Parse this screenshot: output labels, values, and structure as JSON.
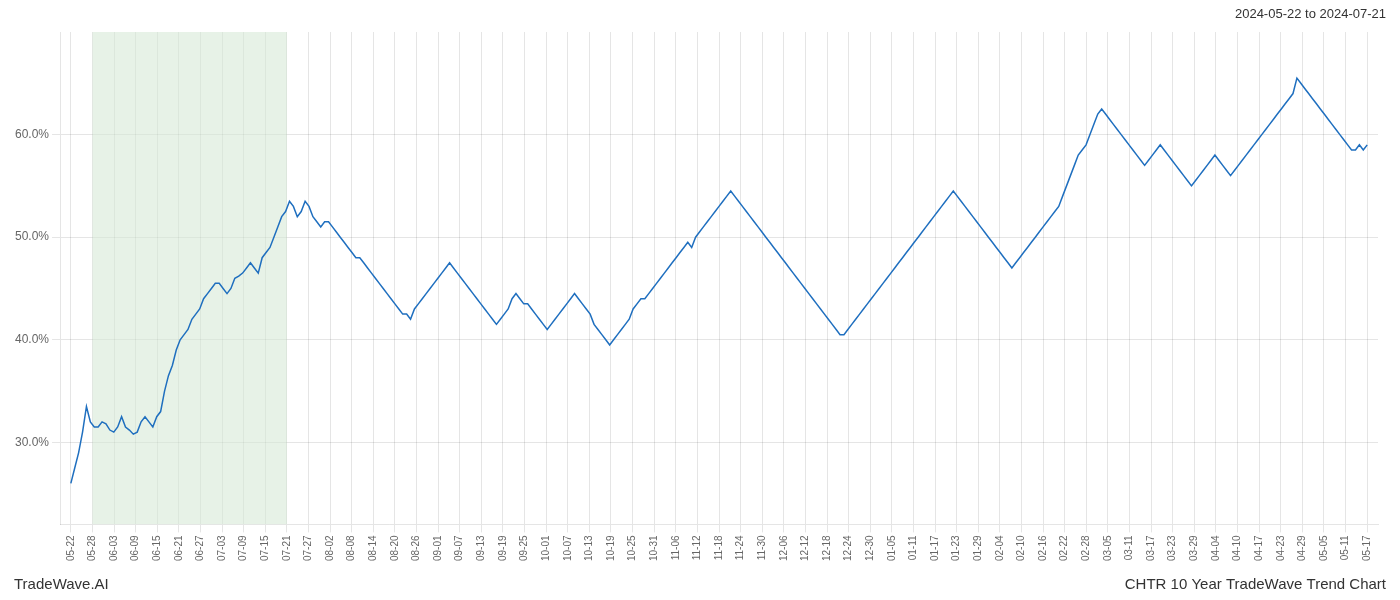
{
  "chart_data": {
    "type": "line",
    "title": "CHTR 10 Year TradeWave Trend Chart",
    "subtitle": "2024-05-22 to 2024-07-21",
    "annotations": [
      "TradeWave.AI"
    ],
    "color": "#1f6fbf",
    "grid": true,
    "legend": false,
    "xlim": [
      -0.5,
      60.5
    ],
    "xticks": [
      {
        "value": 0,
        "label": "05-22"
      },
      {
        "value": 1,
        "label": "05-28"
      },
      {
        "value": 2,
        "label": "06-03"
      },
      {
        "value": 3,
        "label": "06-09"
      },
      {
        "value": 4,
        "label": "06-15"
      },
      {
        "value": 5,
        "label": "06-21"
      },
      {
        "value": 6,
        "label": "06-27"
      },
      {
        "value": 7,
        "label": "07-03"
      },
      {
        "value": 8,
        "label": "07-09"
      },
      {
        "value": 9,
        "label": "07-15"
      },
      {
        "value": 10,
        "label": "07-21"
      },
      {
        "value": 11,
        "label": "07-27"
      },
      {
        "value": 12,
        "label": "08-02"
      },
      {
        "value": 13,
        "label": "08-08"
      },
      {
        "value": 14,
        "label": "08-14"
      },
      {
        "value": 15,
        "label": "08-20"
      },
      {
        "value": 16,
        "label": "08-26"
      },
      {
        "value": 17,
        "label": "09-01"
      },
      {
        "value": 18,
        "label": "09-07"
      },
      {
        "value": 19,
        "label": "09-13"
      },
      {
        "value": 20,
        "label": "09-19"
      },
      {
        "value": 21,
        "label": "09-25"
      },
      {
        "value": 22,
        "label": "10-01"
      },
      {
        "value": 23,
        "label": "10-07"
      },
      {
        "value": 24,
        "label": "10-13"
      },
      {
        "value": 25,
        "label": "10-19"
      },
      {
        "value": 26,
        "label": "10-25"
      },
      {
        "value": 27,
        "label": "10-31"
      },
      {
        "value": 28,
        "label": "11-06"
      },
      {
        "value": 29,
        "label": "11-12"
      },
      {
        "value": 30,
        "label": "11-18"
      },
      {
        "value": 31,
        "label": "11-24"
      },
      {
        "value": 32,
        "label": "11-30"
      },
      {
        "value": 33,
        "label": "12-06"
      },
      {
        "value": 34,
        "label": "12-12"
      },
      {
        "value": 35,
        "label": "12-18"
      },
      {
        "value": 36,
        "label": "12-24"
      },
      {
        "value": 37,
        "label": "12-30"
      },
      {
        "value": 38,
        "label": "01-05"
      },
      {
        "value": 39,
        "label": "01-11"
      },
      {
        "value": 40,
        "label": "01-17"
      },
      {
        "value": 41,
        "label": "01-23"
      },
      {
        "value": 42,
        "label": "01-29"
      },
      {
        "value": 43,
        "label": "02-04"
      },
      {
        "value": 44,
        "label": "02-10"
      },
      {
        "value": 45,
        "label": "02-16"
      },
      {
        "value": 46,
        "label": "02-22"
      },
      {
        "value": 47,
        "label": "02-28"
      },
      {
        "value": 48,
        "label": "03-05"
      },
      {
        "value": 49,
        "label": "03-11"
      },
      {
        "value": 50,
        "label": "03-17"
      },
      {
        "value": 51,
        "label": "03-23"
      },
      {
        "value": 52,
        "label": "03-29"
      },
      {
        "value": 53,
        "label": "04-04"
      },
      {
        "value": 54,
        "label": "04-10"
      },
      {
        "value": 55,
        "label": "04-17"
      },
      {
        "value": 56,
        "label": "04-23"
      },
      {
        "value": 57,
        "label": "04-29"
      },
      {
        "value": 58,
        "label": "05-05"
      },
      {
        "value": 59,
        "label": "05-11"
      },
      {
        "value": 60,
        "label": "05-17"
      }
    ],
    "ylim": [
      22,
      70
    ],
    "yticks": [
      {
        "value": 30.0,
        "label": "30.0%"
      },
      {
        "value": 40.0,
        "label": "40.0%"
      },
      {
        "value": 50.0,
        "label": "50.0%"
      },
      {
        "value": 60.0,
        "label": "60.0%"
      }
    ],
    "shaded": {
      "from": "05-28",
      "to": "07-21",
      "color": "#d4e8d4"
    },
    "values": [
      26.0,
      27.5,
      29.0,
      31.0,
      33.5,
      32.0,
      31.5,
      31.5,
      32.0,
      31.8,
      31.2,
      31.0,
      31.5,
      32.5,
      31.5,
      31.2,
      30.8,
      31.0,
      32.0,
      32.5,
      32.0,
      31.5,
      32.5,
      33.0,
      35.0,
      36.5,
      37.5,
      39.0,
      40.0,
      40.5,
      41.0,
      42.0,
      42.5,
      43.0,
      44.0,
      44.5,
      45.0,
      45.5,
      45.5,
      45.0,
      44.5,
      45.0,
      46.0,
      46.2,
      46.5,
      47.0,
      47.5,
      47.0,
      46.5,
      48.0,
      48.5,
      49.0,
      50.0,
      51.0,
      52.0,
      52.5,
      53.5,
      53.0,
      52.0,
      52.5,
      53.5,
      53.0,
      52.0,
      51.5,
      51.0,
      51.5,
      51.5,
      51.0,
      50.5,
      50.0,
      49.5,
      49.0,
      48.5,
      48.0,
      48.0,
      47.5,
      47.0,
      46.5,
      46.0,
      45.5,
      45.0,
      44.5,
      44.0,
      43.5,
      43.0,
      42.5,
      42.5,
      42.0,
      43.0,
      43.5,
      44.0,
      44.5,
      45.0,
      45.5,
      46.0,
      46.5,
      47.0,
      47.5,
      47.0,
      46.5,
      46.0,
      45.5,
      45.0,
      44.5,
      44.0,
      43.5,
      43.0,
      42.5,
      42.0,
      41.5,
      42.0,
      42.5,
      43.0,
      44.0,
      44.5,
      44.0,
      43.5,
      43.5,
      43.0,
      42.5,
      42.0,
      41.5,
      41.0,
      41.5,
      42.0,
      42.5,
      43.0,
      43.5,
      44.0,
      44.5,
      44.0,
      43.5,
      43.0,
      42.5,
      41.5,
      41.0,
      40.5,
      40.0,
      39.5,
      40.0,
      40.5,
      41.0,
      41.5,
      42.0,
      43.0,
      43.5,
      44.0,
      44.0,
      44.5,
      45.0,
      45.5,
      46.0,
      46.5,
      47.0,
      47.5,
      48.0,
      48.5,
      49.0,
      49.5,
      49.0,
      50.0,
      50.5,
      51.0,
      51.5,
      52.0,
      52.5,
      53.0,
      53.5,
      54.0,
      54.5,
      54.0,
      53.5,
      53.0,
      52.5,
      52.0,
      51.5,
      51.0,
      50.5,
      50.0,
      49.5,
      49.0,
      48.5,
      48.0,
      47.5,
      47.0,
      46.5,
      46.0,
      45.5,
      45.0,
      44.5,
      44.0,
      43.5,
      43.0,
      42.5,
      42.0,
      41.5,
      41.0,
      40.5,
      40.5,
      41.0,
      41.5,
      42.0,
      42.5,
      43.0,
      43.5,
      44.0,
      44.5,
      45.0,
      45.5,
      46.0,
      46.5,
      47.0,
      47.5,
      48.0,
      48.5,
      49.0,
      49.5,
      50.0,
      50.5,
      51.0,
      51.5,
      52.0,
      52.5,
      53.0,
      53.5,
      54.0,
      54.5,
      54.0,
      53.5,
      53.0,
      52.5,
      52.0,
      51.5,
      51.0,
      50.5,
      50.0,
      49.5,
      49.0,
      48.5,
      48.0,
      47.5,
      47.0,
      47.5,
      48.0,
      48.5,
      49.0,
      49.5,
      50.0,
      50.5,
      51.0,
      51.5,
      52.0,
      52.5,
      53.0,
      54.0,
      55.0,
      56.0,
      57.0,
      58.0,
      58.5,
      59.0,
      60.0,
      61.0,
      62.0,
      62.5,
      62.0,
      61.5,
      61.0,
      60.5,
      60.0,
      59.5,
      59.0,
      58.5,
      58.0,
      57.5,
      57.0,
      57.5,
      58.0,
      58.5,
      59.0,
      58.5,
      58.0,
      57.5,
      57.0,
      56.5,
      56.0,
      55.5,
      55.0,
      55.5,
      56.0,
      56.5,
      57.0,
      57.5,
      58.0,
      57.5,
      57.0,
      56.5,
      56.0,
      56.5,
      57.0,
      57.5,
      58.0,
      58.5,
      59.0,
      59.5,
      60.0,
      60.5,
      61.0,
      61.5,
      62.0,
      62.5,
      63.0,
      63.5,
      64.0,
      65.5,
      65.0,
      64.5,
      64.0,
      63.5,
      63.0,
      62.5,
      62.0,
      61.5,
      61.0,
      60.5,
      60.0,
      59.5,
      59.0,
      58.5,
      58.5,
      59.0,
      58.5,
      59.0
    ]
  }
}
